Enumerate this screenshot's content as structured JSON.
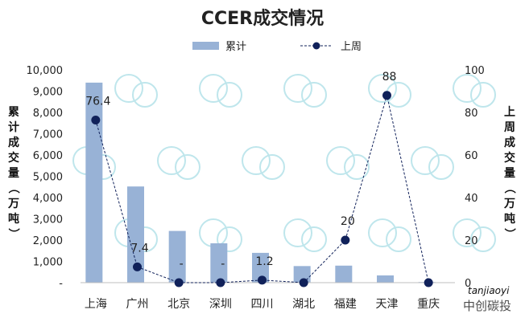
{
  "chart_data": {
    "type": "bar+line",
    "title": "CCER成交情况",
    "categories": [
      "上海",
      "广州",
      "北京",
      "深圳",
      "四川",
      "湖北",
      "福建",
      "天津",
      "重庆"
    ],
    "series": [
      {
        "name": "累计",
        "type": "bar",
        "axis": "left",
        "color": "#98b2d6",
        "values": [
          9400,
          4520,
          2430,
          1850,
          1400,
          780,
          800,
          340,
          30
        ]
      },
      {
        "name": "上周",
        "type": "line",
        "axis": "right",
        "color": "#10215a",
        "values": [
          76.4,
          7.4,
          0,
          0,
          1.2,
          0,
          20,
          88,
          0
        ],
        "data_labels": [
          "76.4",
          "7.4",
          "-",
          "-",
          "1.2",
          "",
          "20",
          "88",
          ""
        ]
      }
    ],
    "ylabel": "累计成交量（万吨）",
    "y2label": "上周成交量（万吨）",
    "ylim": [
      0,
      10000
    ],
    "y2lim": [
      0,
      100
    ],
    "yticks": [
      "-",
      "1,000",
      "2,000",
      "3,000",
      "4,000",
      "5,000",
      "6,000",
      "7,000",
      "8,000",
      "9,000",
      "10,000"
    ],
    "y2ticks": [
      "0",
      "20",
      "40",
      "60",
      "80",
      "100"
    ],
    "legend": "top-center",
    "grid": false
  },
  "watermark": {
    "text": "tanjiaoyi",
    "subtext": "中创碳投"
  }
}
